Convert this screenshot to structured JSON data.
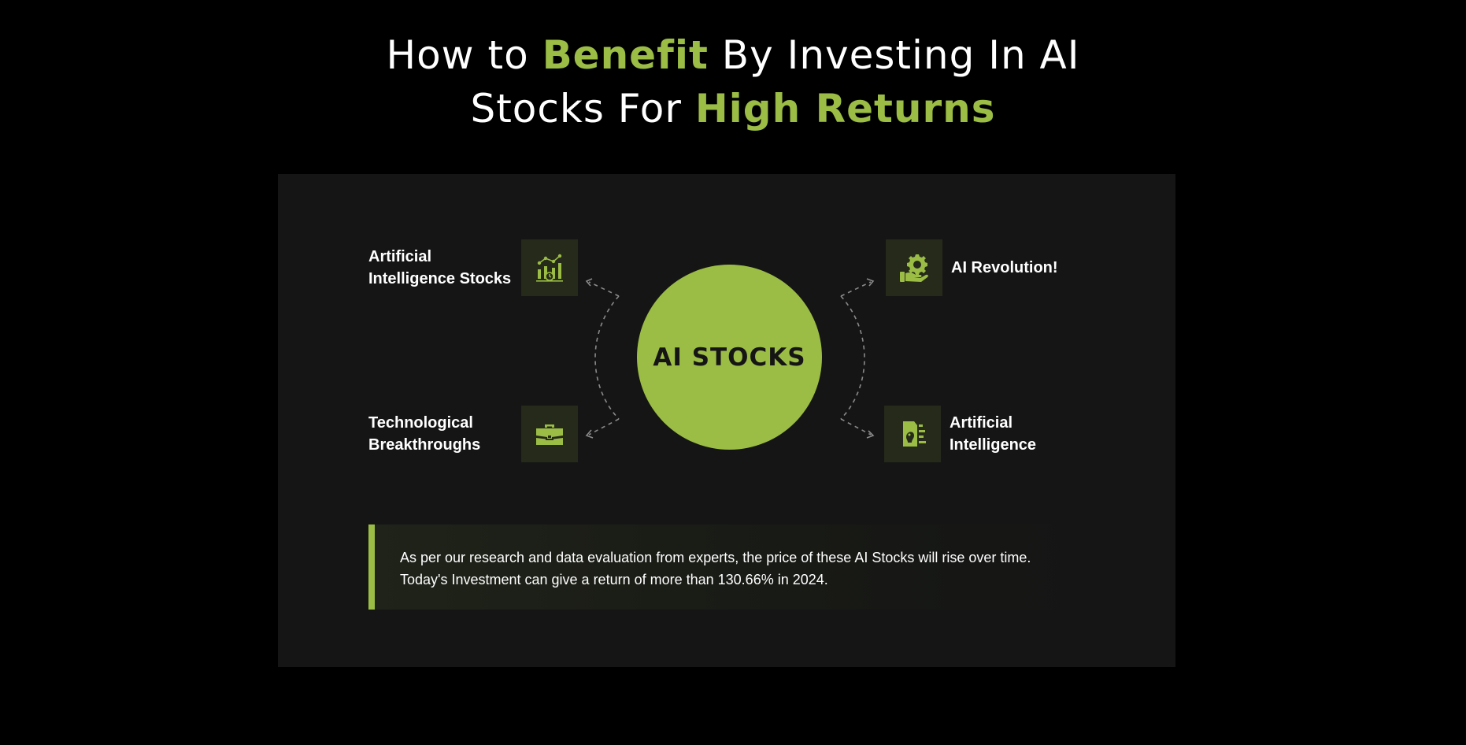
{
  "heading": {
    "line1_part1": "How to ",
    "line1_highlight": "Benefit",
    "line1_part2": " By Investing In AI",
    "line2_part1": "Stocks For ",
    "line2_highlight": "High Returns"
  },
  "center": {
    "label": "AI STOCKS"
  },
  "features": [
    {
      "label_line1": "Artificial",
      "label_line2": "Intelligence Stocks",
      "icon": "chart-analytics-icon"
    },
    {
      "label_line1": "AI Revolution!",
      "label_line2": "",
      "icon": "hand-gear-icon"
    },
    {
      "label_line1": "Technological",
      "label_line2": "Breakthroughs",
      "icon": "briefcase-icon"
    },
    {
      "label_line1": "Artificial",
      "label_line2": "Intelligence",
      "icon": "ai-head-icon"
    }
  ],
  "note": {
    "line1": "As per our research and data evaluation from experts, the price of these AI Stocks will rise over time.",
    "line2": "Today's Investment can give a return of more than 130.66% in 2024."
  },
  "colors": {
    "background": "#000000",
    "panel": "#151515",
    "accent": "#9bbd45",
    "icon_box": "#252a1b",
    "text": "#ffffff"
  }
}
